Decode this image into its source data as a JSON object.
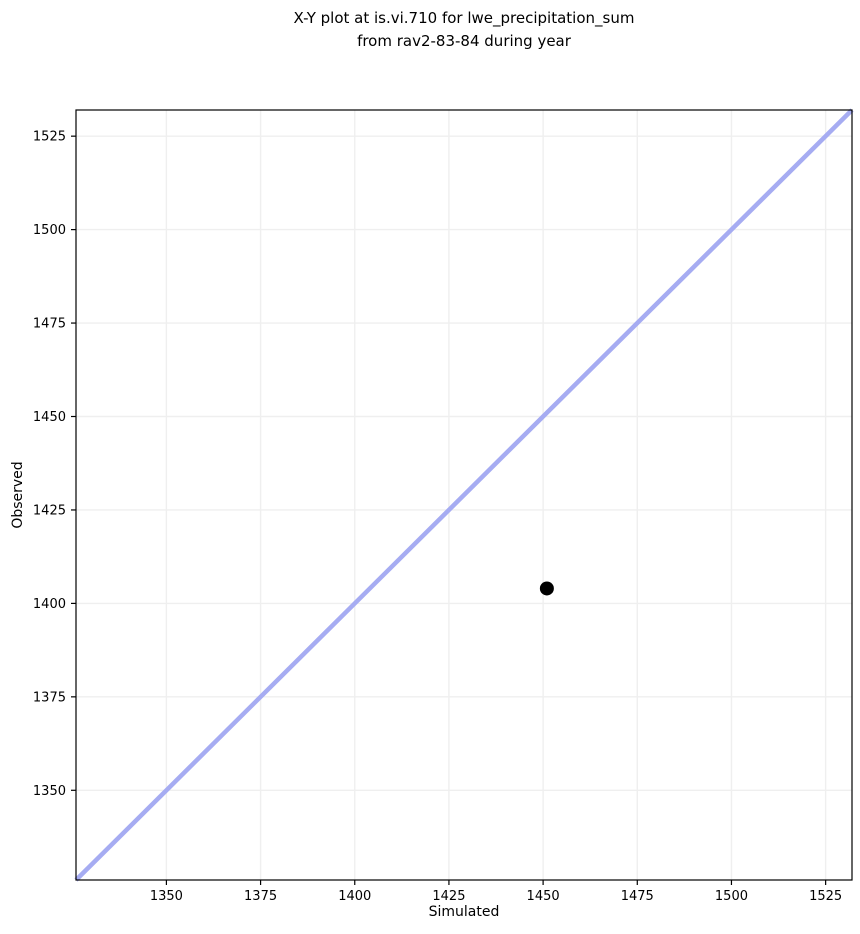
{
  "title": {
    "line1": "X-Y plot at is.vi.710 for lwe_precipitation_sum",
    "line2": "from rav2-83-84 during year"
  },
  "chart_data": {
    "type": "scatter",
    "title": "X-Y plot at is.vi.710 for lwe_precipitation_sum from rav2-83-84 during year",
    "xlabel": "Simulated",
    "ylabel": "Observed",
    "xlim": [
      1326,
      1532
    ],
    "ylim": [
      1326,
      1532
    ],
    "xticks": [
      1350,
      1375,
      1400,
      1425,
      1450,
      1475,
      1500,
      1525
    ],
    "yticks": [
      1350,
      1375,
      1400,
      1425,
      1450,
      1475,
      1500,
      1525
    ],
    "grid": true,
    "legend_position": "none",
    "points": [
      {
        "x": 1451,
        "y": 1404
      }
    ],
    "identity_line": {
      "x1": 1326,
      "y1": 1326,
      "x2": 1532,
      "y2": 1532
    },
    "colors": {
      "identity_line": "#a6acf2",
      "point": "#000000",
      "grid": "#efefef",
      "spine": "#000000",
      "background": "#ffffff"
    }
  }
}
